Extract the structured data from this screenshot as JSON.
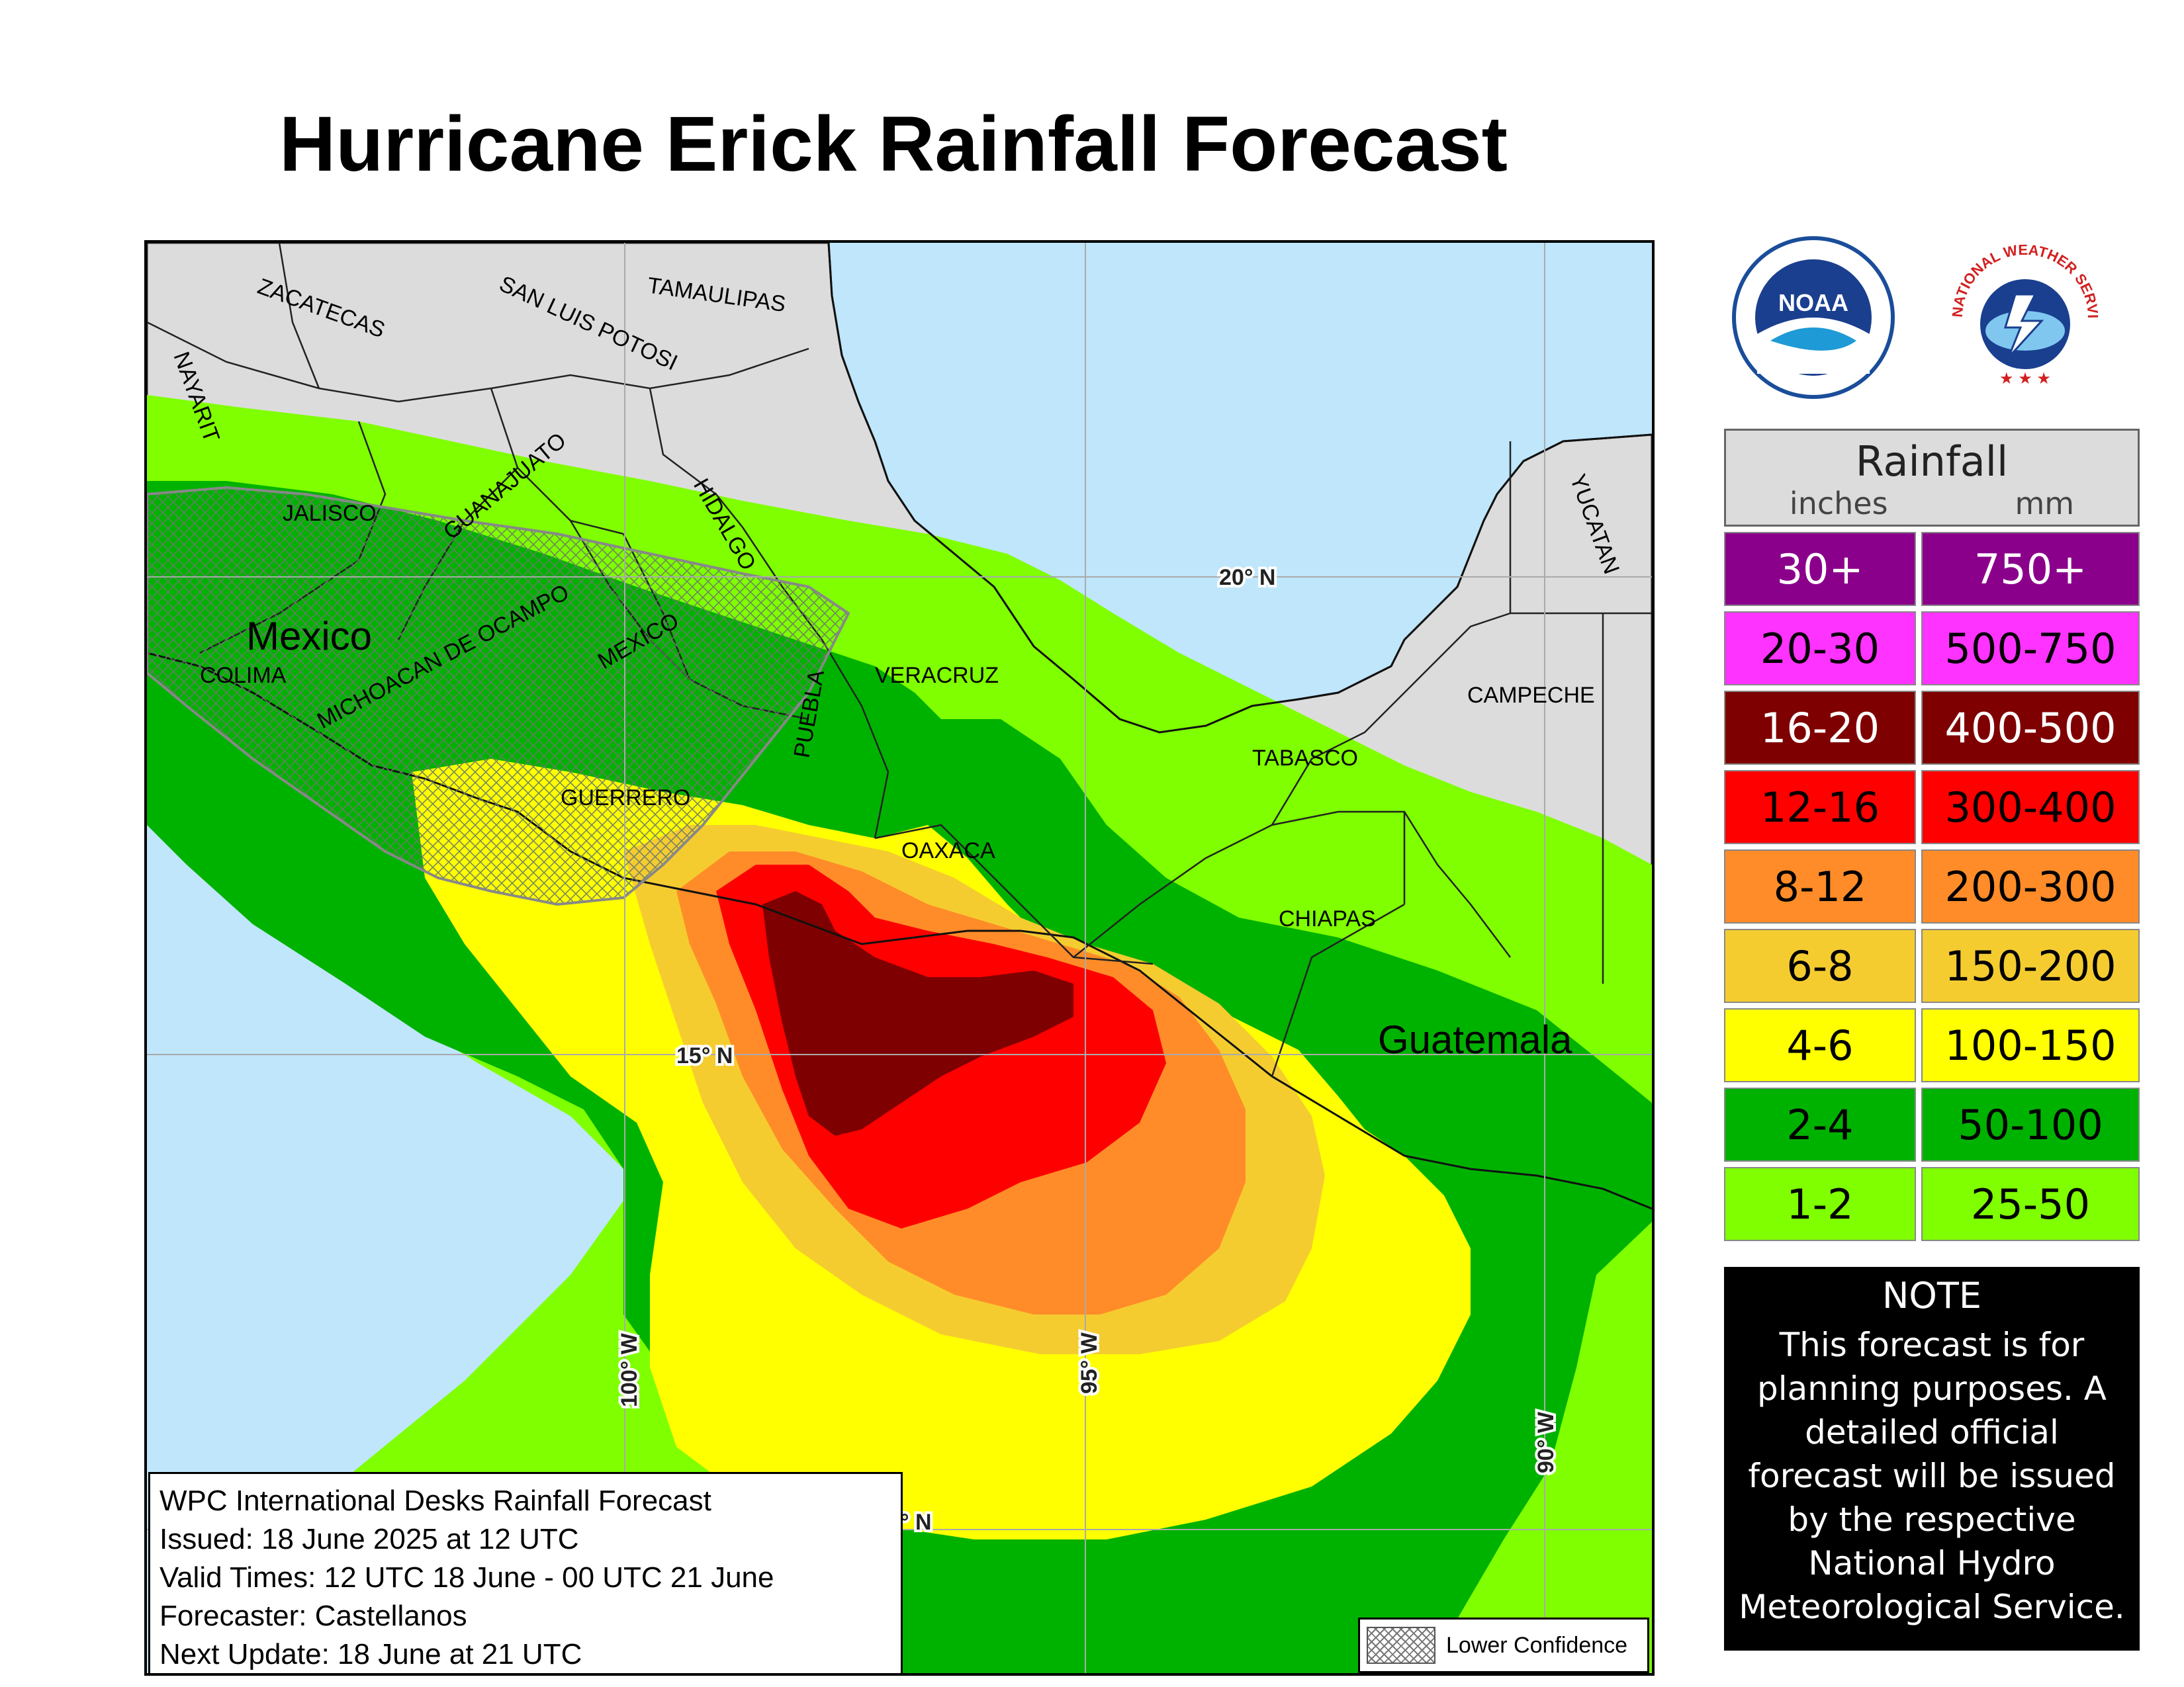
{
  "title": "Hurricane Erick Rainfall Forecast",
  "map": {
    "regions": [
      {
        "name": "ZACATECAS"
      },
      {
        "name": "SAN LUIS POTOSI"
      },
      {
        "name": "TAMAULIPAS"
      },
      {
        "name": "NAYARIT"
      },
      {
        "name": "JALISCO"
      },
      {
        "name": "GUANAJUATO"
      },
      {
        "name": "HIDALGO"
      },
      {
        "name": "MICHOACAN DE OCAMPO"
      },
      {
        "name": "MEXICO"
      },
      {
        "name": "COLIMA"
      },
      {
        "name": "PUEBLA"
      },
      {
        "name": "VERACRUZ"
      },
      {
        "name": "GUERRERO"
      },
      {
        "name": "OAXACA"
      },
      {
        "name": "TABASCO"
      },
      {
        "name": "CAMPECHE"
      },
      {
        "name": "YUCATAN"
      },
      {
        "name": "CHIAPAS"
      }
    ],
    "countries": [
      "Mexico",
      "Guatemala"
    ],
    "grid_labels": {
      "lat_20": "20° N",
      "lat_15": "15° N",
      "lat_10": "° N",
      "lon_100": "100° W",
      "lon_95": "95° W",
      "lon_90": "90° W"
    },
    "colors": {
      "water": "#bfe6fb",
      "land": "#dcdcdc",
      "r1_2": "#7fff00",
      "r2_4": "#00b200",
      "r4_6": "#ffff00",
      "r6_8": "#f5cc30",
      "r8_12": "#ff8c28",
      "r12_16": "#ff0000",
      "r16_20": "#7f0000"
    }
  },
  "info": {
    "line1": "WPC International Desks Rainfall Forecast",
    "line2": "Issued: 18 June 2025 at 12 UTC",
    "line3": "Valid Times: 12 UTC 18 June - 00 UTC 21 June",
    "line4": "Forecaster: Castellanos",
    "line5": "Next Update: 18 June at 21 UTC"
  },
  "confidence_legend": "Lower Confidence",
  "logos": {
    "noaa": "NOAA",
    "nws_top": "NATIONAL WEATHER SERVICE"
  },
  "legend": {
    "title": "Rainfall",
    "unit_in": "inches",
    "unit_mm": "mm",
    "rows": [
      {
        "in": "30+",
        "mm": "750+",
        "color": "#8b008b",
        "text": "#ffffff"
      },
      {
        "in": "20-30",
        "mm": "500-750",
        "color": "#ff33ff",
        "text": "#000000"
      },
      {
        "in": "16-20",
        "mm": "400-500",
        "color": "#7f0000",
        "text": "#ffffff"
      },
      {
        "in": "12-16",
        "mm": "300-400",
        "color": "#ff0000",
        "text": "#000000"
      },
      {
        "in": "8-12",
        "mm": "200-300",
        "color": "#ff8c28",
        "text": "#000000"
      },
      {
        "in": "6-8",
        "mm": "150-200",
        "color": "#f5cc30",
        "text": "#000000"
      },
      {
        "in": "4-6",
        "mm": "100-150",
        "color": "#ffff00",
        "text": "#000000"
      },
      {
        "in": "2-4",
        "mm": "50-100",
        "color": "#00b200",
        "text": "#000000"
      },
      {
        "in": "1-2",
        "mm": "25-50",
        "color": "#7fff00",
        "text": "#000000"
      }
    ]
  },
  "note": {
    "title": "NOTE",
    "body": "This forecast is for planning purposes. A detailed official forecast will be issued by the respective National Hydro Meteorological Service."
  }
}
